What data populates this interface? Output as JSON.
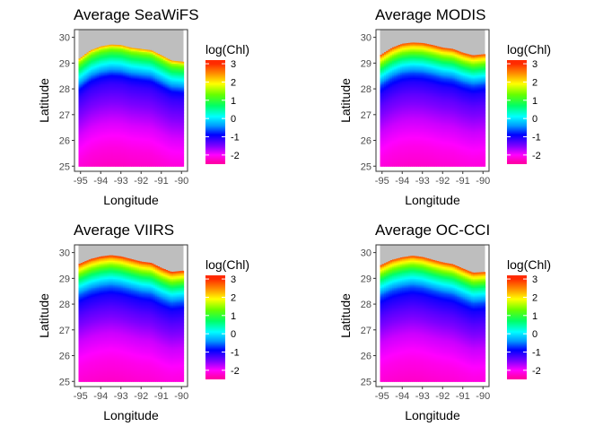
{
  "chart_data": [
    {
      "type": "heatmap",
      "title": "Average SeaWiFS",
      "xlabel": "Longitude",
      "ylabel": "Latitude",
      "xlim": [
        -95.3,
        -89.7
      ],
      "ylim": [
        24.8,
        30.3
      ],
      "x_ticks": [
        -95,
        -94,
        -93,
        -92,
        -91,
        -90
      ],
      "x_tick_labels": [
        "-95",
        "-94",
        "-93",
        "-92",
        "-91",
        "-90"
      ],
      "y_ticks": [
        25,
        26,
        27,
        28,
        29,
        30
      ],
      "y_tick_labels": [
        "25",
        "26",
        "27",
        "28",
        "29",
        "30"
      ],
      "legend": {
        "title": "log(Chl)",
        "ticks": [
          3,
          2,
          1,
          0,
          -1,
          -2
        ],
        "tick_labels": [
          "3",
          "2",
          "1",
          "0",
          "-1",
          "-2"
        ],
        "range": [
          -2.5,
          3.2
        ],
        "placement": "right"
      },
      "data_extent": {
        "lon": [
          -95.1,
          -89.9
        ],
        "lat": [
          25.0,
          30.3
        ]
      },
      "coast_profile": {
        "lon": [
          -95.1,
          -94.5,
          -94.0,
          -93.5,
          -93.0,
          -92.5,
          -92.0,
          -91.5,
          -91.0,
          -90.5,
          -89.9
        ],
        "lat": [
          29.15,
          29.5,
          29.65,
          29.72,
          29.7,
          29.6,
          29.55,
          29.5,
          29.3,
          29.1,
          29.05
        ]
      },
      "profile_vs_distance_offshore_deg": [
        [
          0.0,
          2.4
        ],
        [
          0.1,
          1.6
        ],
        [
          0.3,
          1.0
        ],
        [
          0.6,
          0.3
        ],
        [
          0.9,
          -0.3
        ],
        [
          1.2,
          -0.9
        ],
        [
          1.5,
          -1.15
        ],
        [
          2.0,
          -1.4
        ],
        [
          3.0,
          -1.85
        ],
        [
          4.0,
          -2.15
        ],
        [
          4.8,
          -2.3
        ]
      ],
      "land_color": "#bebebe"
    },
    {
      "type": "heatmap",
      "title": "Average MODIS",
      "xlabel": "Longitude",
      "ylabel": "Latitude",
      "xlim": [
        -95.3,
        -89.7
      ],
      "ylim": [
        24.8,
        30.3
      ],
      "x_ticks": [
        -95,
        -94,
        -93,
        -92,
        -91,
        -90
      ],
      "x_tick_labels": [
        "-95",
        "-94",
        "-93",
        "-92",
        "-91",
        "-90"
      ],
      "y_ticks": [
        25,
        26,
        27,
        28,
        29,
        30
      ],
      "y_tick_labels": [
        "25",
        "26",
        "27",
        "28",
        "29",
        "30"
      ],
      "legend": {
        "title": "log(Chl)",
        "ticks": [
          3,
          2,
          1,
          0,
          -1,
          -2
        ],
        "tick_labels": [
          "3",
          "2",
          "1",
          "0",
          "-1",
          "-2"
        ],
        "range": [
          -2.5,
          3.2
        ],
        "placement": "right"
      },
      "data_extent": {
        "lon": [
          -95.1,
          -89.9
        ],
        "lat": [
          25.0,
          30.3
        ]
      },
      "coast_profile": {
        "lon": [
          -95.1,
          -94.5,
          -94.0,
          -93.5,
          -93.0,
          -92.5,
          -92.0,
          -91.5,
          -91.0,
          -90.5,
          -89.9
        ],
        "lat": [
          29.3,
          29.6,
          29.75,
          29.8,
          29.78,
          29.7,
          29.6,
          29.55,
          29.4,
          29.3,
          29.35
        ]
      },
      "profile_vs_distance_offshore_deg": [
        [
          0.0,
          2.8
        ],
        [
          0.1,
          2.2
        ],
        [
          0.3,
          1.5
        ],
        [
          0.6,
          0.6
        ],
        [
          0.9,
          -0.1
        ],
        [
          1.2,
          -0.7
        ],
        [
          1.5,
          -1.05
        ],
        [
          2.0,
          -1.35
        ],
        [
          3.0,
          -1.8
        ],
        [
          4.0,
          -2.1
        ],
        [
          4.8,
          -2.25
        ]
      ],
      "land_color": "#bebebe"
    },
    {
      "type": "heatmap",
      "title": "Average VIIRS",
      "xlabel": "Longitude",
      "ylabel": "Latitude",
      "xlim": [
        -95.3,
        -89.7
      ],
      "ylim": [
        24.8,
        30.3
      ],
      "x_ticks": [
        -95,
        -94,
        -93,
        -92,
        -91,
        -90
      ],
      "x_tick_labels": [
        "-95",
        "-94",
        "-93",
        "-92",
        "-91",
        "-90"
      ],
      "y_ticks": [
        25,
        26,
        27,
        28,
        29,
        30
      ],
      "y_tick_labels": [
        "25",
        "26",
        "27",
        "28",
        "29",
        "30"
      ],
      "legend": {
        "title": "log(Chl)",
        "ticks": [
          3,
          2,
          1,
          0,
          -1,
          -2
        ],
        "tick_labels": [
          "3",
          "2",
          "1",
          "0",
          "-1",
          "-2"
        ],
        "range": [
          -2.5,
          3.2
        ],
        "placement": "right"
      },
      "data_extent": {
        "lon": [
          -95.1,
          -89.9
        ],
        "lat": [
          25.0,
          30.3
        ]
      },
      "coast_profile": {
        "lon": [
          -95.1,
          -94.5,
          -94.0,
          -93.5,
          -93.0,
          -92.5,
          -92.0,
          -91.5,
          -91.0,
          -90.5,
          -89.9
        ],
        "lat": [
          29.55,
          29.75,
          29.85,
          29.9,
          29.85,
          29.75,
          29.65,
          29.6,
          29.4,
          29.25,
          29.3
        ]
      },
      "profile_vs_distance_offshore_deg": [
        [
          0.0,
          2.9
        ],
        [
          0.1,
          2.3
        ],
        [
          0.3,
          1.6
        ],
        [
          0.6,
          0.7
        ],
        [
          0.9,
          0.0
        ],
        [
          1.2,
          -0.6
        ],
        [
          1.5,
          -1.0
        ],
        [
          2.0,
          -1.3
        ],
        [
          3.0,
          -1.8
        ],
        [
          4.0,
          -2.1
        ],
        [
          4.8,
          -2.25
        ]
      ],
      "land_color": "#bebebe"
    },
    {
      "type": "heatmap",
      "title": "Average OC-CCI",
      "xlabel": "Longitude",
      "ylabel": "Latitude",
      "xlim": [
        -95.3,
        -89.7
      ],
      "ylim": [
        24.8,
        30.3
      ],
      "x_ticks": [
        -95,
        -94,
        -93,
        -92,
        -91,
        -90
      ],
      "x_tick_labels": [
        "-95",
        "-94",
        "-93",
        "-92",
        "-91",
        "-90"
      ],
      "y_ticks": [
        25,
        26,
        27,
        28,
        29,
        30
      ],
      "y_tick_labels": [
        "25",
        "26",
        "27",
        "28",
        "29",
        "30"
      ],
      "legend": {
        "title": "log(Chl)",
        "ticks": [
          3,
          2,
          1,
          0,
          -1,
          -2
        ],
        "tick_labels": [
          "3",
          "2",
          "1",
          "0",
          "-1",
          "-2"
        ],
        "range": [
          -2.5,
          3.2
        ],
        "placement": "right"
      },
      "data_extent": {
        "lon": [
          -95.1,
          -89.9
        ],
        "lat": [
          25.0,
          30.3
        ]
      },
      "coast_profile": {
        "lon": [
          -95.1,
          -94.5,
          -94.0,
          -93.5,
          -93.0,
          -92.5,
          -92.0,
          -91.5,
          -91.0,
          -90.5,
          -89.9
        ],
        "lat": [
          29.5,
          29.72,
          29.82,
          29.88,
          29.83,
          29.72,
          29.62,
          29.55,
          29.38,
          29.22,
          29.25
        ]
      },
      "profile_vs_distance_offshore_deg": [
        [
          0.0,
          2.8
        ],
        [
          0.1,
          2.2
        ],
        [
          0.3,
          1.5
        ],
        [
          0.6,
          0.6
        ],
        [
          0.9,
          -0.05
        ],
        [
          1.2,
          -0.65
        ],
        [
          1.5,
          -1.0
        ],
        [
          2.0,
          -1.3
        ],
        [
          3.0,
          -1.8
        ],
        [
          4.0,
          -2.1
        ],
        [
          4.8,
          -2.25
        ]
      ],
      "land_color": "#bebebe"
    }
  ],
  "colors": {
    "colorbar_stops": [
      {
        "value": 3.0,
        "color": "#ff2a00"
      },
      {
        "value": 2.4,
        "color": "#ff9900"
      },
      {
        "value": 1.9,
        "color": "#ffff00"
      },
      {
        "value": 1.3,
        "color": "#66ff00"
      },
      {
        "value": 0.7,
        "color": "#00ff66"
      },
      {
        "value": 0.1,
        "color": "#00ffff"
      },
      {
        "value": -0.4,
        "color": "#0099ff"
      },
      {
        "value": -0.9,
        "color": "#0000ff"
      },
      {
        "value": -1.5,
        "color": "#7f00ff"
      },
      {
        "value": -2.0,
        "color": "#ff00ff"
      },
      {
        "value": -2.4,
        "color": "#ff00aa"
      }
    ]
  }
}
